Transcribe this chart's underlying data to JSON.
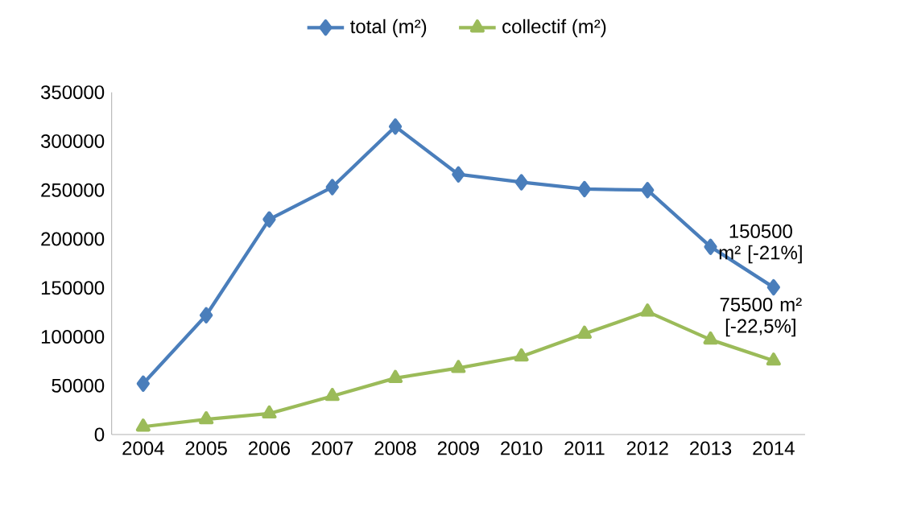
{
  "chart_data": {
    "type": "line",
    "categories": [
      "2004",
      "2005",
      "2006",
      "2007",
      "2008",
      "2009",
      "2010",
      "2011",
      "2012",
      "2013",
      "2014"
    ],
    "series": [
      {
        "name": "total  (m²)",
        "color": "#4a7ebb",
        "marker": "diamond",
        "values": [
          52000,
          122000,
          220000,
          253000,
          315000,
          266000,
          258000,
          251000,
          250000,
          192000,
          150500
        ]
      },
      {
        "name": "collectif (m²)",
        "color": "#9bbb59",
        "marker": "triangle",
        "values": [
          8000,
          15500,
          21400,
          39300,
          57700,
          67900,
          79800,
          103000,
          125600,
          97000,
          75500
        ]
      }
    ],
    "ylim": [
      0,
      350000
    ],
    "yticks": [
      0,
      50000,
      100000,
      150000,
      200000,
      250000,
      300000,
      350000
    ],
    "grid": false,
    "legend": "top",
    "line_style": "solid",
    "annotations": [
      {
        "text": "150500 m² [-21%]",
        "x": "2014",
        "y": 150500
      },
      {
        "text": "75500 m² [-22,5%]",
        "x": "2014",
        "y": 75500
      }
    ]
  }
}
